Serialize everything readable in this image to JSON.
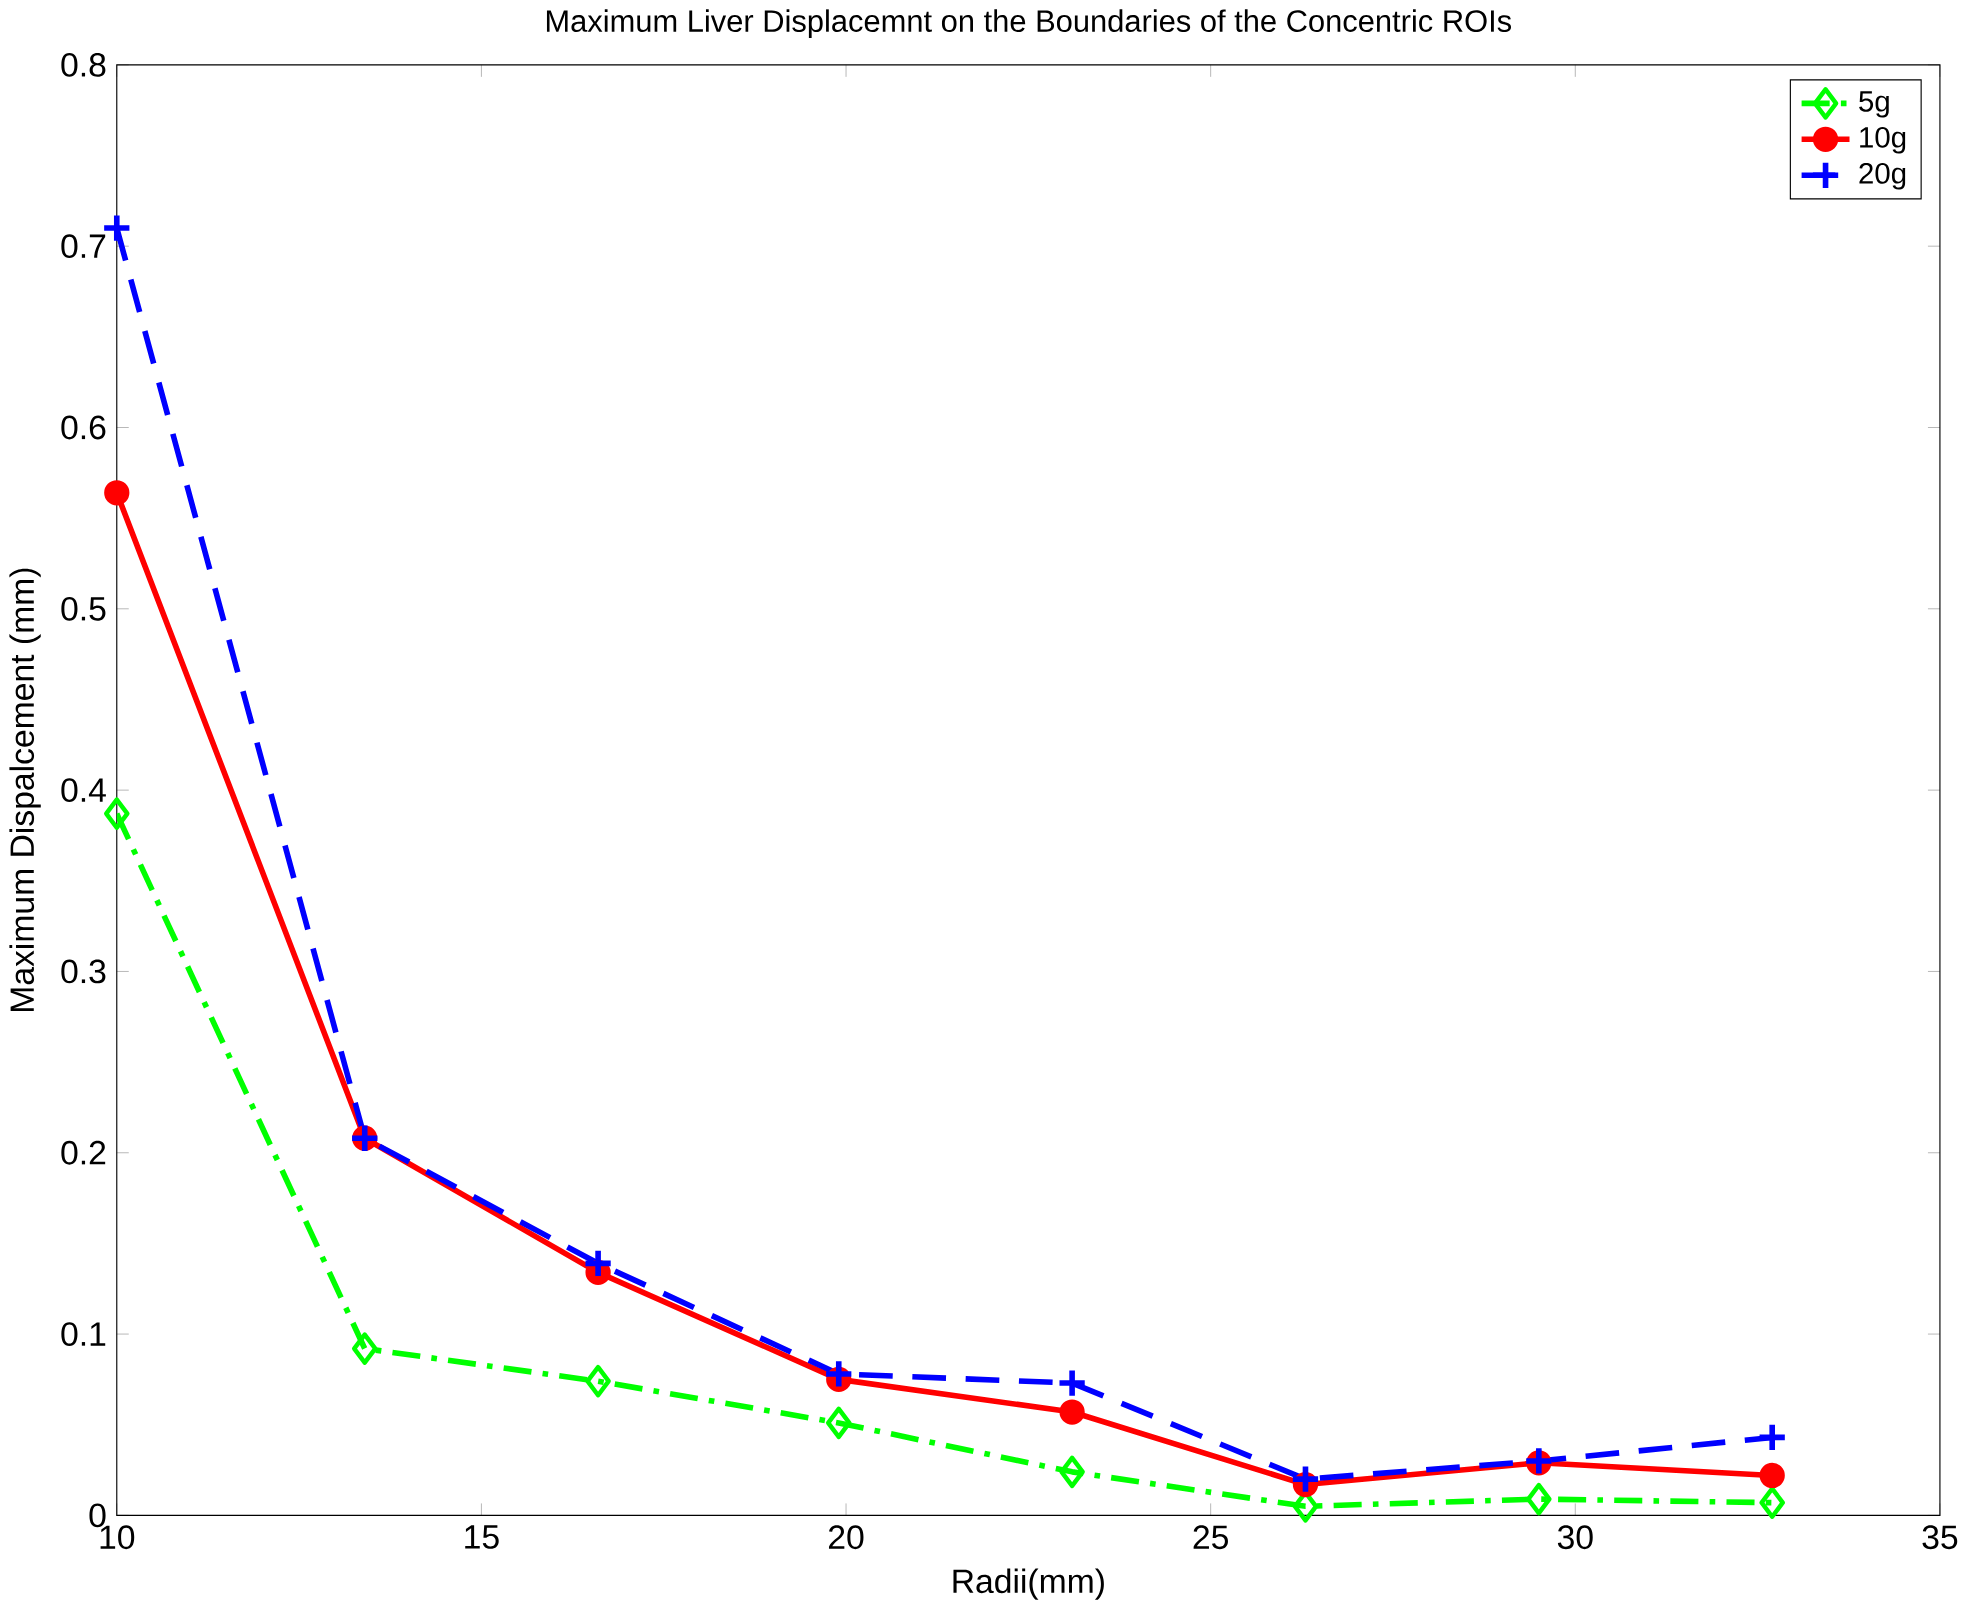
{
  "chart_data": {
    "type": "line",
    "title": "Maximum Liver Displacemnt on the Boundaries of the Concentric ROIs",
    "xlabel": "Radii(mm)",
    "ylabel": "Maximum Dispalcement (mm)",
    "x": [
      10,
      13.4,
      16.6,
      19.9,
      23.1,
      26.3,
      29.5,
      32.7
    ],
    "series": [
      {
        "name": "5g",
        "color": "#00ff00",
        "marker": "diamond",
        "line_style": "dashdot",
        "values": [
          0.387,
          0.092,
          0.074,
          0.051,
          0.024,
          0.005,
          0.009,
          0.007
        ]
      },
      {
        "name": "10g",
        "color": "#ff0000",
        "marker": "circle",
        "line_style": "solid",
        "values": [
          0.564,
          0.208,
          0.134,
          0.075,
          0.057,
          0.017,
          0.029,
          0.022
        ]
      },
      {
        "name": "20g",
        "color": "#0000ff",
        "marker": "cross",
        "line_style": "dashed",
        "values": [
          0.71,
          0.208,
          0.139,
          0.078,
          0.073,
          0.02,
          0.03,
          0.043
        ]
      }
    ],
    "xlim": [
      10,
      35
    ],
    "ylim": [
      0,
      0.8
    ],
    "xticks": [
      10,
      15,
      20,
      25,
      30,
      35
    ],
    "yticks": [
      0,
      0.1,
      0.2,
      0.3,
      0.4,
      0.5,
      0.6,
      0.7,
      0.8
    ],
    "grid": false,
    "legend": "top right"
  }
}
